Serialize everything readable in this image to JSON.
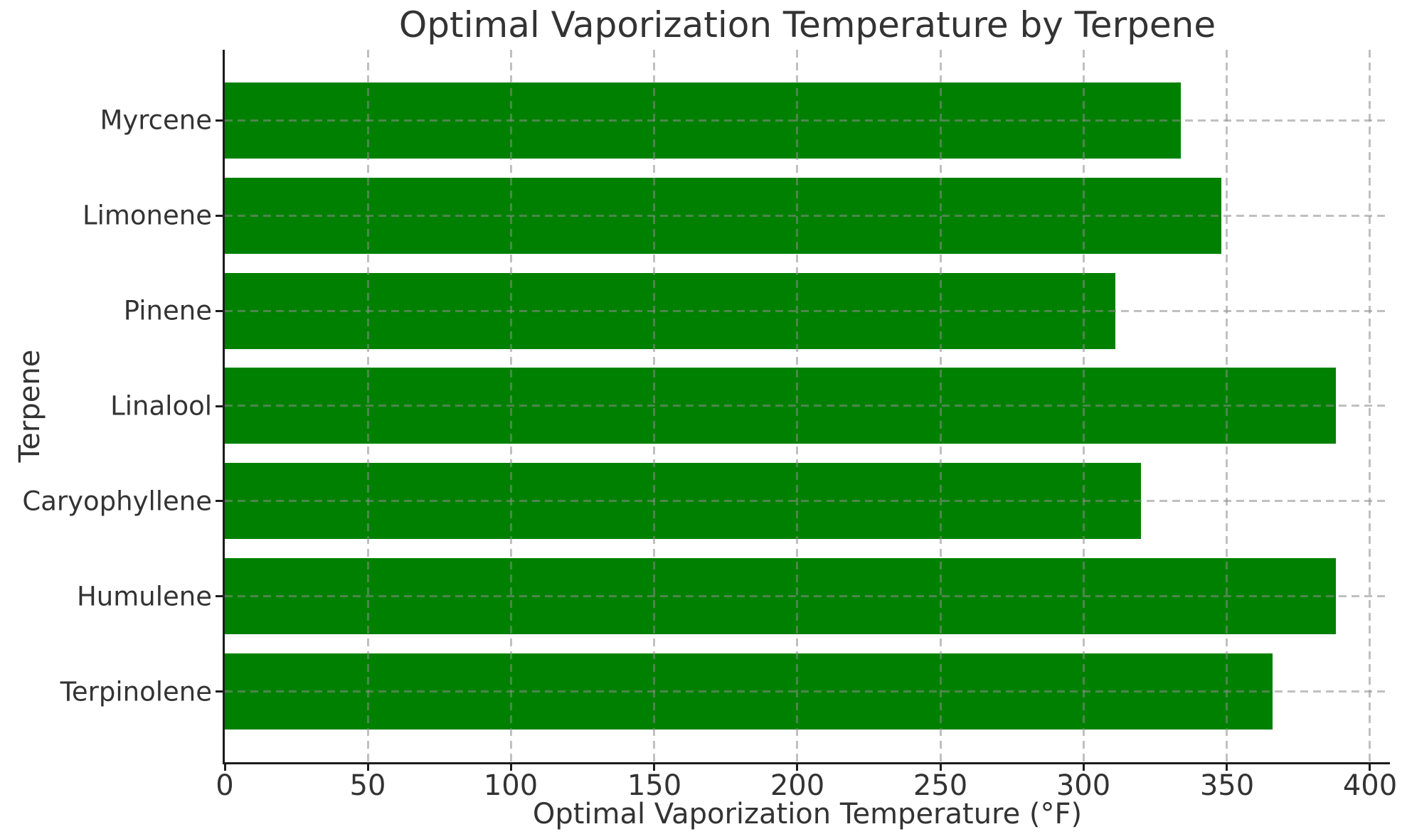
{
  "chart_data": {
    "type": "bar",
    "orientation": "horizontal",
    "title": "Optimal Vaporization Temperature by Terpene",
    "xlabel": "Optimal Vaporization Temperature (°F)",
    "ylabel": "Terpene",
    "categories": [
      "Myrcene",
      "Limonene",
      "Pinene",
      "Linalool",
      "Caryophyllene",
      "Humulene",
      "Terpinolene"
    ],
    "values": [
      334,
      348,
      311,
      388,
      320,
      388,
      366
    ],
    "xticks": [
      0,
      50,
      100,
      150,
      200,
      250,
      300,
      350,
      400
    ],
    "xlim": [
      0,
      407
    ],
    "bar_color": "#008000",
    "grid": true,
    "grid_linestyle": "dashed",
    "legend": "none"
  }
}
